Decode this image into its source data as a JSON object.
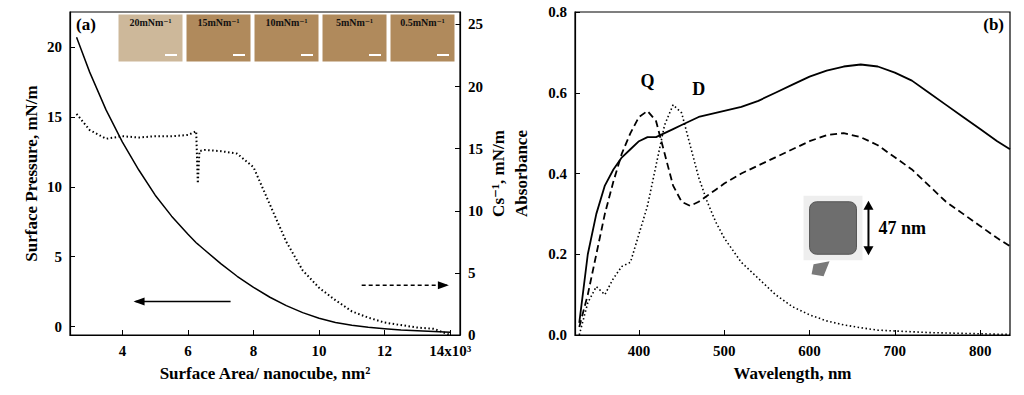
{
  "chart_data": [
    {
      "type": "line",
      "panel": "(a)",
      "x_label": "Surface Area/ nanocube, nm²",
      "y_label": "Surface Pressure, mN/m",
      "y2_label": "Cs⁻¹, mN/m",
      "annotations": [
        "20mNm⁻¹",
        "15mNm⁻¹",
        "10mNm⁻¹",
        "5mNm⁻¹",
        "0.5mNm⁻¹"
      ],
      "x": [
        2.6,
        3,
        3.5,
        4,
        4.5,
        5,
        5.5,
        6,
        6.25,
        6.3,
        6.35,
        6.5,
        7,
        7.5,
        8,
        8.5,
        9,
        9.5,
        10,
        10.5,
        11,
        11.5,
        12,
        12.5,
        13,
        13.5,
        14
      ],
      "series": [
        {
          "color": "#000000",
          "line_style": "solid",
          "values": [
            20.7,
            18.2,
            15.5,
            13.2,
            11.2,
            9.4,
            7.9,
            6.6,
            6.0,
            5.9,
            5.8,
            5.5,
            4.5,
            3.6,
            2.8,
            2.1,
            1.5,
            1.0,
            0.6,
            0.3,
            0.1,
            -0.05,
            -0.15,
            -0.25,
            -0.3,
            -0.35,
            -0.4
          ]
        },
        {
          "color": "#000000",
          "line_style": "dotted",
          "axis": "y2",
          "values": [
            17.8,
            16.5,
            15.8,
            16.0,
            15.9,
            16.0,
            16.0,
            16.1,
            16.4,
            12.2,
            14.8,
            14.9,
            14.8,
            14.6,
            13.5,
            10.5,
            7.5,
            5.2,
            3.8,
            2.8,
            1.9,
            1.4,
            1.0,
            0.8,
            0.6,
            0.5,
            0.0
          ]
        }
      ],
      "xlim": [
        2.4,
        14.3
      ],
      "xticks": [
        4,
        6,
        8,
        10,
        12,
        {
          "value": 14,
          "label": "14x10³"
        }
      ],
      "ylim": [
        -0.6,
        22.5
      ],
      "yticks": [
        0,
        5,
        10,
        15,
        20
      ],
      "y2lim": [
        0,
        26
      ],
      "y2ticks": [
        0,
        5,
        10,
        15,
        20,
        25
      ],
      "grid": false
    },
    {
      "type": "line",
      "panel": "(b)",
      "x_label": "Wavelength, nm",
      "y_label": "Absorbance",
      "annotations": [
        "Q",
        "D",
        "47 nm"
      ],
      "x": [
        330,
        340,
        350,
        360,
        370,
        380,
        390,
        400,
        410,
        420,
        430,
        440,
        450,
        460,
        470,
        480,
        490,
        500,
        520,
        540,
        560,
        580,
        600,
        620,
        640,
        660,
        680,
        700,
        720,
        740,
        760,
        780,
        800,
        820,
        835
      ],
      "series": [
        {
          "color": "#000000",
          "line_style": "solid",
          "values": [
            0.03,
            0.2,
            0.3,
            0.37,
            0.41,
            0.44,
            0.46,
            0.48,
            0.49,
            0.49,
            0.5,
            0.51,
            0.52,
            0.53,
            0.54,
            0.545,
            0.55,
            0.555,
            0.565,
            0.58,
            0.6,
            0.62,
            0.64,
            0.655,
            0.665,
            0.67,
            0.665,
            0.65,
            0.63,
            0.6,
            0.57,
            0.54,
            0.51,
            0.48,
            0.46
          ]
        },
        {
          "color": "#000000",
          "line_style": "dashed",
          "values": [
            0.02,
            0.1,
            0.2,
            0.3,
            0.38,
            0.45,
            0.5,
            0.54,
            0.555,
            0.53,
            0.45,
            0.37,
            0.33,
            0.32,
            0.33,
            0.345,
            0.36,
            0.375,
            0.4,
            0.42,
            0.44,
            0.46,
            0.48,
            0.495,
            0.5,
            0.49,
            0.47,
            0.44,
            0.41,
            0.37,
            0.33,
            0.3,
            0.27,
            0.24,
            0.22
          ]
        },
        {
          "color": "#000000",
          "line_style": "dotted",
          "values": [
            0.0,
            0.08,
            0.12,
            0.1,
            0.14,
            0.17,
            0.18,
            0.25,
            0.32,
            0.42,
            0.52,
            0.57,
            0.55,
            0.47,
            0.39,
            0.33,
            0.28,
            0.24,
            0.18,
            0.14,
            0.1,
            0.07,
            0.05,
            0.035,
            0.025,
            0.018,
            0.012,
            0.01,
            0.008,
            0.006,
            0.005,
            0.004,
            0.003,
            0.002,
            0.002
          ]
        }
      ],
      "xlim": [
        325,
        835
      ],
      "xticks": [
        400,
        500,
        600,
        700,
        800
      ],
      "ylim": [
        0,
        0.8
      ],
      "yticks": [
        {
          "value": 0,
          "label": "0.0"
        },
        {
          "value": 0.2,
          "label": "0.2"
        },
        {
          "value": 0.4,
          "label": "0.4"
        },
        {
          "value": 0.6,
          "label": "0.6"
        },
        {
          "value": 0.8,
          "label": "0.8"
        }
      ],
      "grid": false
    }
  ]
}
